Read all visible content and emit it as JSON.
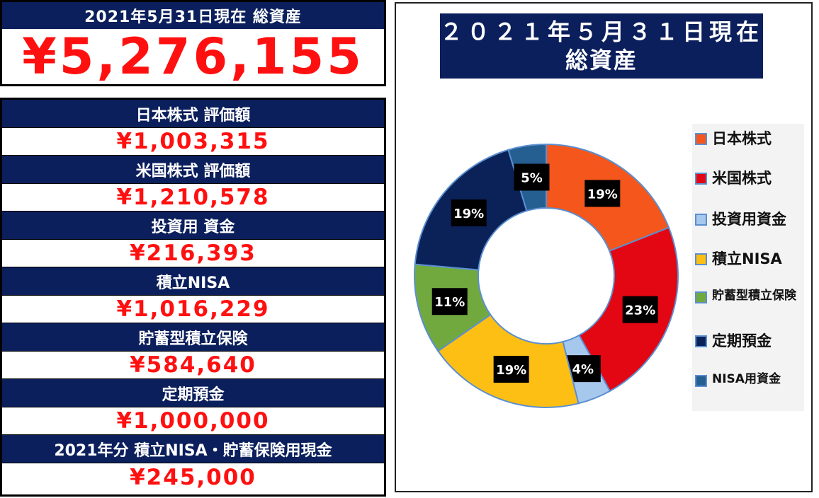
{
  "summary": {
    "header": "2021年5月31日現在 総資産",
    "total": "¥5,276,155"
  },
  "assets": [
    {
      "label": "日本株式 評価額",
      "value": "¥1,003,315"
    },
    {
      "label": "米国株式 評価額",
      "value": "¥1,210,578"
    },
    {
      "label": "投資用 資金",
      "value": "¥216,393"
    },
    {
      "label": "積立NISA",
      "value": "¥1,016,229"
    },
    {
      "label": "貯蓄型積立保険",
      "value": "¥584,640"
    },
    {
      "label": "定期預金",
      "value": "¥1,000,000"
    },
    {
      "label": "2021年分 積立NISA・貯蓄保険用現金",
      "value": "¥245,000"
    }
  ],
  "chart_data": {
    "type": "pie",
    "title_line1": "２０２１年５月３１日現在",
    "title_line2": "総資産",
    "categories": [
      "日本株式",
      "米国株式",
      "投資用資金",
      "積立NISA",
      "貯蓄型積立保険",
      "定期預金",
      "NISA用資金"
    ],
    "values": [
      1003315,
      1210578,
      216393,
      1016229,
      584640,
      1000000,
      245000
    ],
    "labels": [
      "19%",
      "23%",
      "4%",
      "19%",
      "11%",
      "19%",
      "5%"
    ],
    "colors": [
      "#f4561c",
      "#e30613",
      "#a6c8ec",
      "#fdbf14",
      "#72a93f",
      "#0b2259",
      "#255e91"
    ],
    "legend_position": "right",
    "donut": true
  }
}
